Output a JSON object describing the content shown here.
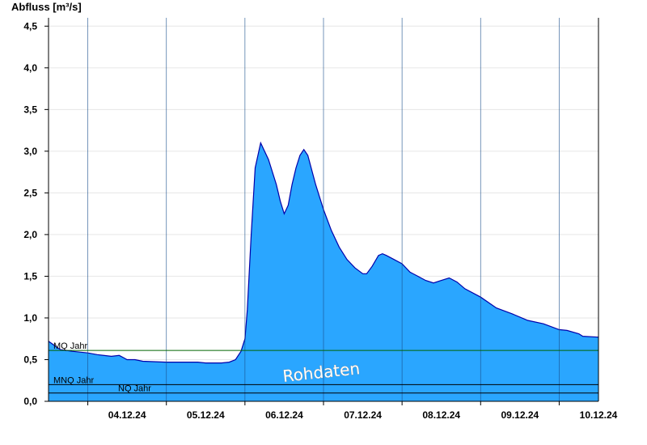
{
  "chart_data": {
    "type": "area",
    "ylabel": "Abfluss [m³/s]",
    "ylim": [
      0,
      4.6
    ],
    "yticks": [
      0.0,
      0.5,
      1.0,
      1.5,
      2.0,
      2.5,
      3.0,
      3.5,
      4.0,
      4.5
    ],
    "ytick_labels": [
      "0,0",
      "0,5",
      "1,0",
      "1,5",
      "2,0",
      "2,5",
      "3,0",
      "3,5",
      "4,0",
      "4,5"
    ],
    "xlim_days": [
      0,
      7
    ],
    "x_start_date": "03.12.24 12:00",
    "day_boundaries": [
      0.5,
      1.5,
      2.5,
      3.5,
      4.5,
      5.5,
      6.5
    ],
    "xtick_labels": [
      "04.12.24",
      "05.12.24",
      "06.12.24",
      "07.12.24",
      "08.12.24",
      "09.12.24",
      "10.12.24"
    ],
    "grid": true,
    "fill_color": "#2aa6ff",
    "line_color": "#0000aa",
    "watermark": "Rohdaten",
    "reference_lines": [
      {
        "name": "MQ Jahr",
        "value": 0.61,
        "color": "#006400"
      },
      {
        "name": "MNQ Jahr",
        "value": 0.2,
        "color": "#000000"
      },
      {
        "name": "NQ Jahr",
        "value": 0.1,
        "color": "#000000"
      }
    ],
    "series": [
      {
        "x": [
          0.0,
          0.06,
          0.15,
          0.3,
          0.5,
          0.62,
          0.8,
          0.9,
          0.96,
          1.0,
          1.1,
          1.2,
          1.5,
          1.9,
          2.0,
          2.1,
          2.2,
          2.3,
          2.38,
          2.45,
          2.5,
          2.53,
          2.58,
          2.63,
          2.7,
          2.8,
          2.9,
          2.95,
          3.0,
          3.05,
          3.1,
          3.15,
          3.2,
          3.25,
          3.3,
          3.4,
          3.5,
          3.6,
          3.7,
          3.8,
          3.9,
          4.0,
          4.05,
          4.12,
          4.2,
          4.25,
          4.3,
          4.4,
          4.5,
          4.6,
          4.7,
          4.8,
          4.9,
          5.0,
          5.1,
          5.2,
          5.3,
          5.5,
          5.7,
          5.9,
          6.1,
          6.3,
          6.5,
          6.6,
          6.75,
          6.8,
          7.0
        ],
        "y": [
          0.72,
          0.68,
          0.62,
          0.6,
          0.58,
          0.56,
          0.54,
          0.55,
          0.52,
          0.5,
          0.5,
          0.48,
          0.47,
          0.47,
          0.46,
          0.46,
          0.46,
          0.47,
          0.5,
          0.6,
          0.75,
          1.1,
          2.0,
          2.8,
          3.1,
          2.9,
          2.6,
          2.4,
          2.25,
          2.35,
          2.6,
          2.8,
          2.95,
          3.02,
          2.95,
          2.6,
          2.3,
          2.05,
          1.85,
          1.7,
          1.6,
          1.53,
          1.53,
          1.62,
          1.75,
          1.77,
          1.75,
          1.7,
          1.65,
          1.55,
          1.5,
          1.45,
          1.42,
          1.45,
          1.48,
          1.43,
          1.35,
          1.25,
          1.12,
          1.05,
          0.97,
          0.93,
          0.86,
          0.85,
          0.81,
          0.78,
          0.77
        ]
      }
    ]
  }
}
